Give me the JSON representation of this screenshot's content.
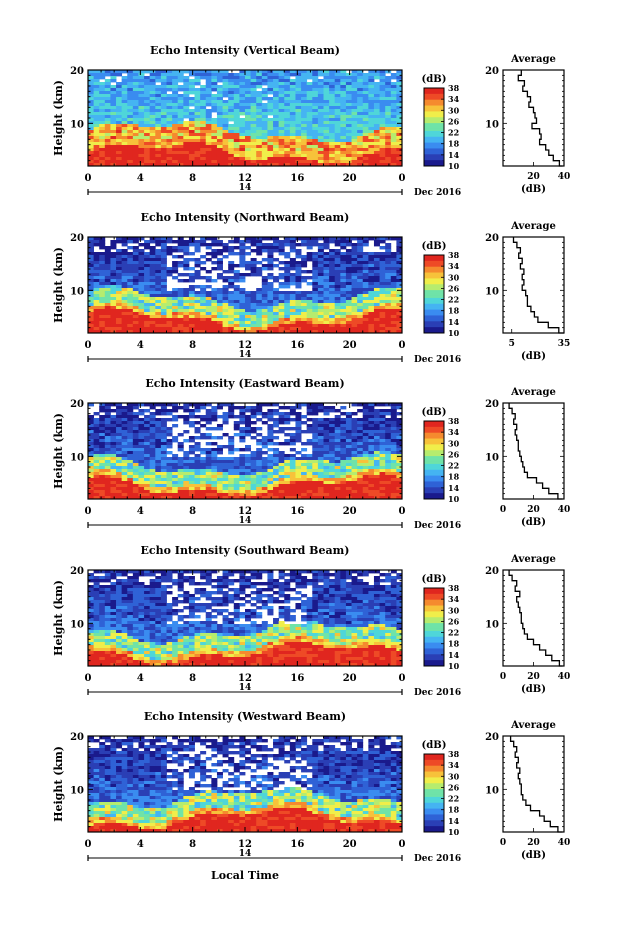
{
  "figure": {
    "xlabel": "Local Time",
    "colorbar_label": "(dB)",
    "colorbar_ticks": [
      "10",
      "14",
      "18",
      "22",
      "26",
      "30",
      "34",
      "38"
    ],
    "avg_title": "Average",
    "avg_xlabel": "(dB)",
    "date_label": "Dec 2016",
    "day_label": "14",
    "ylabel": "Height (km)"
  },
  "chart_data": [
    {
      "type": "heatmap",
      "title": "Echo Intensity (Vertical Beam)",
      "x_ticks": [
        "0",
        "4",
        "8",
        "12",
        "16",
        "20",
        "0"
      ],
      "y_ticks": [
        "20",
        "10"
      ],
      "xlim": [
        0,
        24
      ],
      "ylim": [
        2,
        20
      ],
      "clim": [
        10,
        38
      ],
      "profile": {
        "heights": [
          20,
          19,
          18,
          17,
          16,
          15,
          14,
          13,
          12,
          11,
          10,
          9,
          8,
          7,
          6,
          5,
          4,
          3,
          2
        ],
        "values": [
          12,
          10,
          14,
          13,
          16,
          18,
          17,
          20,
          21,
          22,
          19,
          24,
          25,
          24,
          28,
          30,
          33,
          37,
          39
        ],
        "xlim": [
          0,
          40
        ],
        "x_ticks": [
          20,
          40
        ]
      }
    },
    {
      "type": "heatmap",
      "title": "Echo Intensity (Northward Beam)",
      "x_ticks": [
        "0",
        "4",
        "8",
        "12",
        "16",
        "20",
        "0"
      ],
      "y_ticks": [
        "20",
        "10"
      ],
      "xlim": [
        0,
        24
      ],
      "ylim": [
        2,
        20
      ],
      "clim": [
        10,
        38
      ],
      "profile": {
        "heights": [
          20,
          19,
          18,
          17,
          16,
          15,
          14,
          13,
          12,
          11,
          10,
          9,
          8,
          7,
          6,
          5,
          4,
          3,
          2
        ],
        "values": [
          6,
          8,
          10,
          9,
          11,
          10,
          12,
          11,
          12,
          11,
          13,
          14,
          14,
          16,
          18,
          20,
          26,
          32,
          35
        ],
        "xlim": [
          0,
          35
        ],
        "x_ticks": [
          5,
          35
        ]
      }
    },
    {
      "type": "heatmap",
      "title": "Echo Intensity (Eastward Beam)",
      "x_ticks": [
        "0",
        "4",
        "8",
        "12",
        "16",
        "20",
        "0"
      ],
      "y_ticks": [
        "20",
        "10"
      ],
      "xlim": [
        0,
        24
      ],
      "ylim": [
        2,
        20
      ],
      "clim": [
        10,
        38
      ],
      "profile": {
        "heights": [
          20,
          19,
          18,
          17,
          16,
          15,
          14,
          13,
          12,
          11,
          10,
          9,
          8,
          7,
          6,
          5,
          4,
          3,
          2
        ],
        "values": [
          4,
          6,
          8,
          7,
          9,
          8,
          9,
          10,
          10,
          11,
          12,
          13,
          14,
          16,
          22,
          26,
          30,
          36,
          39
        ],
        "xlim": [
          0,
          40
        ],
        "x_ticks": [
          0,
          20,
          40
        ]
      }
    },
    {
      "type": "heatmap",
      "title": "Echo Intensity (Southward Beam)",
      "x_ticks": [
        "0",
        "4",
        "8",
        "12",
        "16",
        "20",
        "0"
      ],
      "y_ticks": [
        "20",
        "10"
      ],
      "xlim": [
        0,
        24
      ],
      "ylim": [
        2,
        20
      ],
      "clim": [
        10,
        38
      ],
      "profile": {
        "heights": [
          20,
          19,
          18,
          17,
          16,
          15,
          14,
          13,
          12,
          11,
          10,
          9,
          8,
          7,
          6,
          5,
          4,
          3,
          2
        ],
        "values": [
          4,
          6,
          9,
          8,
          11,
          9,
          10,
          11,
          12,
          12,
          13,
          14,
          16,
          20,
          24,
          28,
          32,
          37,
          39
        ],
        "xlim": [
          0,
          40
        ],
        "x_ticks": [
          0,
          20,
          40
        ]
      }
    },
    {
      "type": "heatmap",
      "title": "Echo Intensity (Westward Beam)",
      "x_ticks": [
        "0",
        "4",
        "8",
        "12",
        "16",
        "20",
        "0"
      ],
      "y_ticks": [
        "20",
        "10"
      ],
      "xlim": [
        0,
        24
      ],
      "ylim": [
        2,
        20
      ],
      "clim": [
        10,
        38
      ],
      "profile": {
        "heights": [
          20,
          19,
          18,
          17,
          16,
          15,
          14,
          13,
          12,
          11,
          10,
          9,
          8,
          7,
          6,
          5,
          4,
          3,
          2
        ],
        "values": [
          5,
          7,
          9,
          8,
          10,
          9,
          11,
          10,
          11,
          12,
          12,
          13,
          15,
          18,
          24,
          27,
          31,
          36,
          39
        ],
        "xlim": [
          0,
          40
        ],
        "x_ticks": [
          0,
          20,
          40
        ]
      }
    }
  ]
}
